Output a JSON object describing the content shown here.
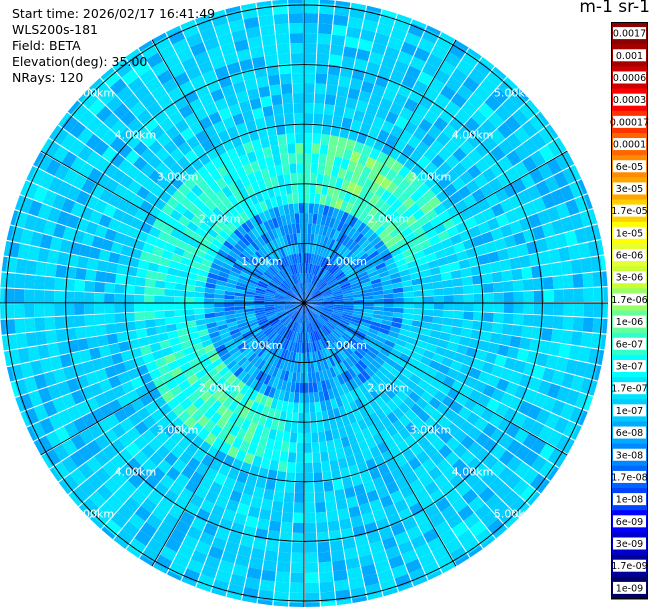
{
  "header": {
    "start_time": "Start time: 2026/02/17 16:41:49",
    "instrument": "WLS200s-181",
    "field": "Field: BETA",
    "elevation": "Elevation(deg): 35.00",
    "nrays": "NRays: 120"
  },
  "colorbar_title": "m-1 sr-1",
  "chart_data": {
    "type": "heatmap",
    "projection": "polar (PPI scan)",
    "field": "BETA",
    "elevation_deg": 35.0,
    "n_rays": 120,
    "range_rings_km": [
      1,
      2,
      3,
      4,
      5
    ],
    "range_ring_labels": [
      "1.00km",
      "2.00km",
      "3.00km",
      "4.00km",
      "5.00km"
    ],
    "colorbar_ticks": [
      "0.0017",
      "0.001",
      "0.0006",
      "0.0003",
      "0.00017",
      "0.0001",
      "6e-05",
      "3e-05",
      "1.7e-05",
      "1e-05",
      "6e-06",
      "3e-06",
      "1.7e-06",
      "1e-06",
      "6e-07",
      "3e-07",
      "1.7e-07",
      "1e-07",
      "6e-08",
      "3e-08",
      "1.7e-08",
      "1e-08",
      "6e-09",
      "3e-09",
      "1.7e-09",
      "1e-09"
    ],
    "colorbar_colors": [
      "#8b0000",
      "#a50000",
      "#cc0000",
      "#ff0000",
      "#ff3300",
      "#ff6600",
      "#ff8c00",
      "#ffa500",
      "#ffd000",
      "#ffff00",
      "#e6ff33",
      "#ccff33",
      "#99ff66",
      "#66ff99",
      "#33ffcc",
      "#00ffff",
      "#00e5ff",
      "#00ccff",
      "#00aaff",
      "#0088ff",
      "#0066ff",
      "#0044ff",
      "#0000ff",
      "#0000cc",
      "#000099",
      "#000066"
    ],
    "grid": true
  }
}
